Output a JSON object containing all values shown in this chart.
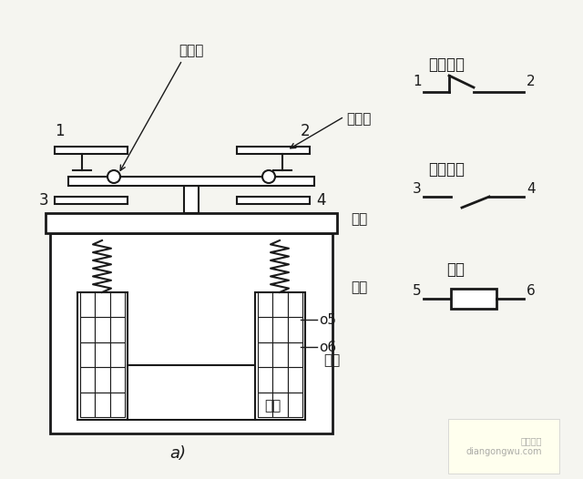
{
  "bg_color": "#f5f5f0",
  "line_color": "#1a1a1a",
  "title_label": "a)",
  "watermark": "电工之屋\ndiangongwu.com",
  "labels": {
    "dong_chudian": "动触点",
    "jing_chudian": "静触点",
    "heng_tie": "衔铁",
    "tie_xin": "铁心",
    "xian_quan": "线圈",
    "chang_bi": "常闭触点",
    "chang_kai": "常开触点",
    "xian_quan2": "线圈"
  }
}
